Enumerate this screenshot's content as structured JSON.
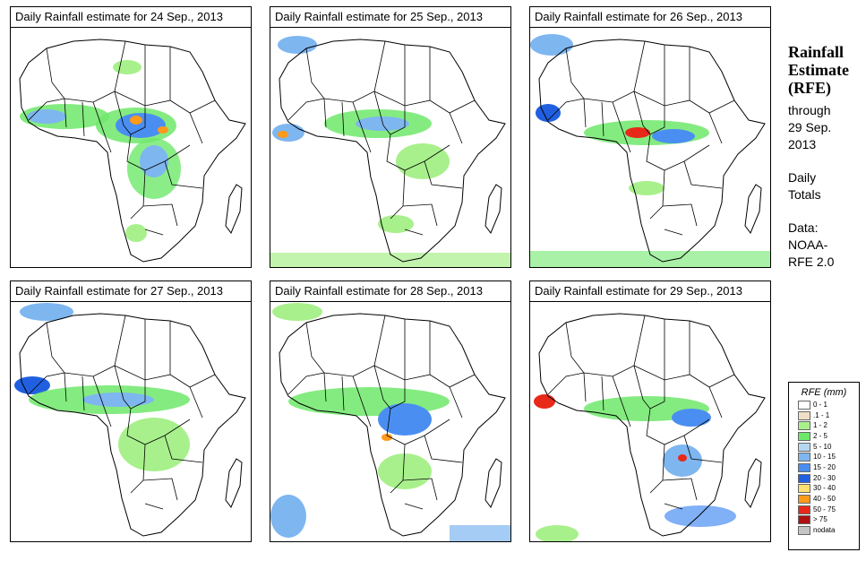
{
  "panels": [
    {
      "title": "Daily Rainfall estimate for  24 Sep., 2013"
    },
    {
      "title": "Daily Rainfall estimate for  25 Sep., 2013"
    },
    {
      "title": "Daily Rainfall estimate for  26 Sep., 2013"
    },
    {
      "title": "Daily Rainfall estimate for  27 Sep., 2013"
    },
    {
      "title": "Daily Rainfall estimate for  28 Sep., 2013"
    },
    {
      "title": "Daily Rainfall estimate for  29 Sep., 2013"
    }
  ],
  "side": {
    "title_lines": [
      "Rainfall",
      "Estimate",
      "(RFE)"
    ],
    "through_lines": [
      "through",
      "29 Sep.",
      "2013"
    ],
    "totals_lines": [
      "Daily",
      "Totals"
    ],
    "data_lines": [
      "Data:",
      "NOAA-",
      "RFE 2.0"
    ]
  },
  "legend": {
    "title": "RFE (mm)",
    "items": [
      {
        "label": "0 - 1",
        "color": "#ffffff"
      },
      {
        "label": ".1 - 1",
        "color": "#eedfc6"
      },
      {
        "label": "1 - 2",
        "color": "#a8f08c"
      },
      {
        "label": "2 - 5",
        "color": "#6ee86a"
      },
      {
        "label": "5 - 10",
        "color": "#b4d8f2"
      },
      {
        "label": "10 - 15",
        "color": "#7eb6f0"
      },
      {
        "label": "15 - 20",
        "color": "#4a8ef2"
      },
      {
        "label": "20 - 30",
        "color": "#2060e0"
      },
      {
        "label": "30 - 40",
        "color": "#ffe070"
      },
      {
        "label": "40 - 50",
        "color": "#ff9a1a"
      },
      {
        "label": "50 - 75",
        "color": "#e82818"
      },
      {
        "label": "> 75",
        "color": "#b01010"
      },
      {
        "label": "nodata",
        "color": "#c4c4c4"
      }
    ]
  }
}
